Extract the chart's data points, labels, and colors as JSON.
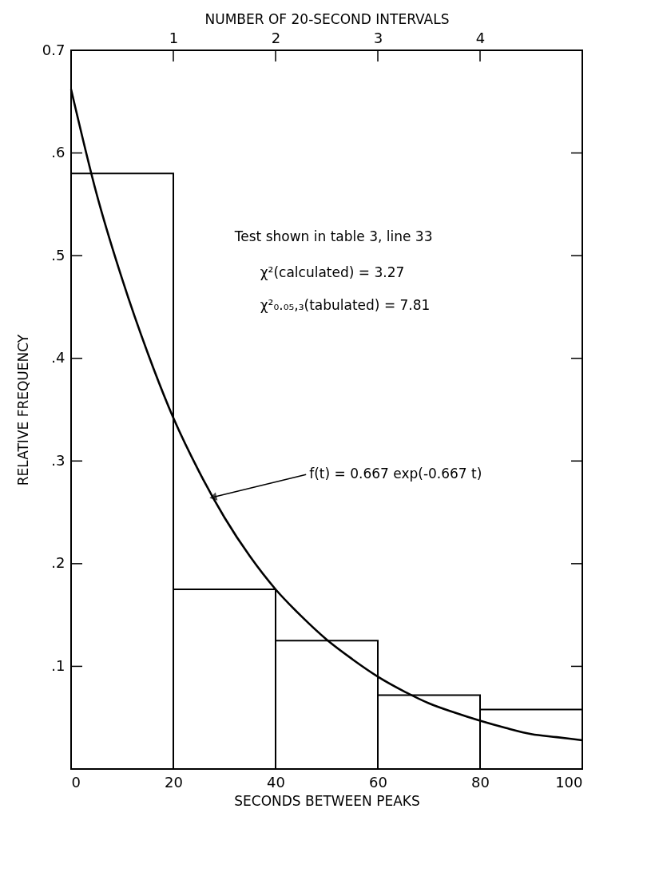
{
  "chart_data": {
    "type": "histogram",
    "xlabel": "SECONDS BETWEEN PEAKS",
    "ylabel": "RELATIVE FREQUENCY",
    "x2label": "NUMBER OF 20-SECOND INTERVALS",
    "bins": [
      0,
      20,
      40,
      60,
      80,
      100
    ],
    "values": [
      0.58,
      0.175,
      0.125,
      0.072,
      0.058
    ],
    "color": "#000000",
    "series": [
      {
        "type": "line",
        "color": "#000000",
        "x": [
          0,
          5,
          10,
          15,
          20,
          25,
          30,
          35,
          40,
          45,
          50,
          55,
          60,
          65,
          70,
          75,
          80,
          85,
          90,
          95,
          100
        ],
        "values": [
          0.662,
          0.56,
          0.477,
          0.405,
          0.342,
          0.29,
          0.245,
          0.207,
          0.175,
          0.149,
          0.126,
          0.107,
          0.09,
          0.076,
          0.064,
          0.055,
          0.047,
          0.04,
          0.034,
          0.031,
          0.028
        ]
      }
    ],
    "xlim": [
      0,
      100
    ],
    "xticks": [
      0,
      20,
      40,
      60,
      80,
      100
    ],
    "x2lim": [
      0,
      5
    ],
    "x2ticks": [
      1,
      2,
      3,
      4
    ],
    "ylim": [
      0,
      0.7
    ],
    "yticks": [
      {
        "value": 0.1,
        "label": ".1"
      },
      {
        "value": 0.2,
        "label": ".2"
      },
      {
        "value": 0.3,
        "label": ".3"
      },
      {
        "value": 0.4,
        "label": ".4"
      },
      {
        "value": 0.5,
        "label": ".5"
      },
      {
        "value": 0.6,
        "label": ".6"
      },
      {
        "value": 0.7,
        "label": "0.7"
      }
    ],
    "annotations": [
      "Test shown in table 3, line 33",
      "χ²(calculated) = 3.27",
      "χ²₀.₀₅,₃(tabulated) = 7.81",
      {
        "text": "f(t) = 0.667 exp(-0.667 t)",
        "x": 28,
        "y": 0.265
      }
    ],
    "grid": false
  }
}
